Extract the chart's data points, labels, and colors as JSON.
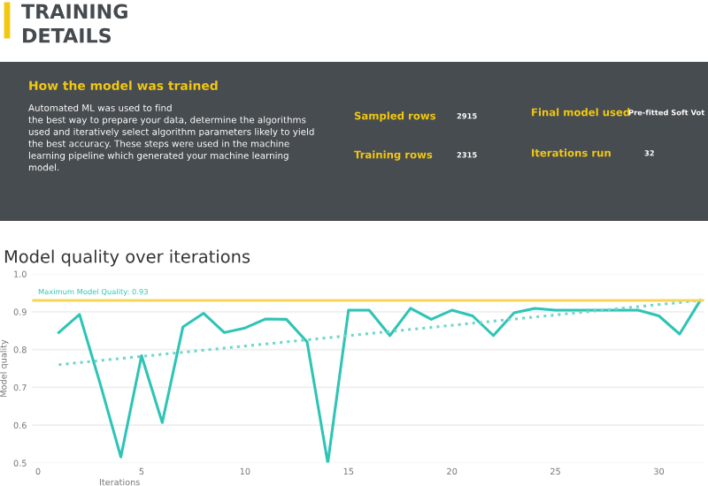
{
  "chart_data": [
    {
      "type": "other",
      "title": "TRAINING DETAILS",
      "subtitle": "How the model was trained",
      "annotations": [
        "Automated ML was used to find\nthe best way to prepare your data, determine the algorithms\nused and iteratively select algorithm parameters likely to yield\nthe best accuracy. These steps were used in the machine\nlearning pipeline which generated your machine learning\nmodel.",
        "Sampled rows",
        "2915",
        "Training rows",
        "2315",
        "Final model used",
        "Pre-fitted Soft Vot",
        "Iterations run",
        "32"
      ]
    },
    {
      "type": "line",
      "title": "Model quality over iterations",
      "xlabel": "Iterations",
      "ylabel": "Model quality",
      "xlim": [
        -0.3,
        32.2
      ],
      "xticks": [
        0,
        5,
        10,
        15,
        20,
        25,
        30
      ],
      "ylim": [
        0.5,
        1.0
      ],
      "yticks": [
        0.5,
        0.6,
        0.7,
        0.8,
        0.9,
        {
          "value": 1.0,
          "label": "1.0"
        }
      ],
      "grid": "y",
      "x": [
        1,
        2,
        3,
        4,
        5,
        6,
        7,
        8,
        9,
        10,
        11,
        12,
        13,
        14,
        15,
        16,
        17,
        18,
        19,
        20,
        21,
        22,
        23,
        24,
        25,
        26,
        27,
        28,
        29,
        30,
        31,
        32
      ],
      "series": [
        {
          "color": "#2ec4b6",
          "line_style": "solid",
          "values": [
            0.845,
            0.893,
            0.71,
            0.516,
            0.784,
            0.607,
            0.86,
            0.896,
            0.845,
            0.857,
            0.881,
            0.88,
            0.82,
            0.5,
            0.904,
            0.904,
            0.837,
            0.909,
            0.88,
            0.904,
            0.889,
            0.837,
            0.897,
            0.909,
            0.904,
            0.904,
            0.904,
            0.904,
            0.904,
            0.889,
            0.841,
            0.93
          ]
        },
        {
          "type": "line",
          "color": "#6fd6ca",
          "line_style": "dotted",
          "x": [
            1,
            32
          ],
          "values": [
            0.76,
            0.93
          ]
        }
      ],
      "ref_lines": [
        {
          "axis": "y",
          "value": 0.93,
          "label": "Maximum Model Quality: 0.93",
          "color": "#f5d55a",
          "line_style": "solid"
        }
      ]
    }
  ]
}
